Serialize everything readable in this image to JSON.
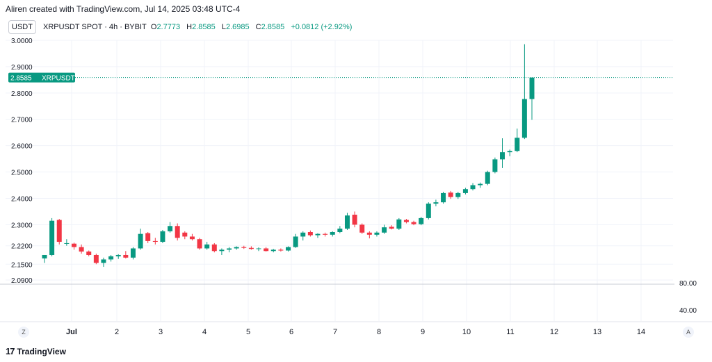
{
  "header": {
    "credit": "Aliren created with TradingView.com, Jul 14, 2025 03:48 UTC-4"
  },
  "toolbar": {
    "currency": "USDT",
    "auto_btn": "A",
    "zoom_btn": "Z"
  },
  "legend": {
    "symbol": "XRPUSDT SPOT · 4h · BYBIT",
    "open_label": "O",
    "open": "2.7773",
    "high_label": "H",
    "high": "2.8585",
    "low_label": "L",
    "low": "2.6985",
    "close_label": "C",
    "close": "2.8585",
    "change": "+0.0812 (+2.92%)"
  },
  "footer": {
    "brand": "TradingView",
    "logo_text": "17"
  },
  "colors": {
    "up": "#089981",
    "down": "#f23645",
    "grid": "#f0f3fa",
    "text": "#131722"
  },
  "chart_data": {
    "type": "candlestick",
    "price_axis_ticks": [
      "3.0000",
      "2.9000",
      "2.8000",
      "2.7000",
      "2.6000",
      "2.5000",
      "2.4000",
      "2.3000",
      "2.2200",
      "2.1500",
      "2.0900"
    ],
    "ylim": [
      2.09,
      3.0
    ],
    "last_price_label": {
      "value": "2.8585",
      "symbol": "XRPUSDT"
    },
    "indicator_axis_ticks": [
      "80.00",
      "40.00"
    ],
    "x_ticks": [
      "Jul",
      "2",
      "3",
      "4",
      "5",
      "6",
      "7",
      "8",
      "9",
      "10",
      "11",
      "12",
      "13",
      "14"
    ],
    "candles": [
      {
        "o": 2.172,
        "h": 2.185,
        "l": 2.155,
        "c": 2.185
      },
      {
        "o": 2.185,
        "h": 2.325,
        "l": 2.18,
        "c": 2.315
      },
      {
        "o": 2.318,
        "h": 2.322,
        "l": 2.225,
        "c": 2.235
      },
      {
        "o": 2.23,
        "h": 2.245,
        "l": 2.22,
        "c": 2.23
      },
      {
        "o": 2.228,
        "h": 2.232,
        "l": 2.205,
        "c": 2.215
      },
      {
        "o": 2.215,
        "h": 2.225,
        "l": 2.19,
        "c": 2.198
      },
      {
        "o": 2.198,
        "h": 2.202,
        "l": 2.18,
        "c": 2.185
      },
      {
        "o": 2.185,
        "h": 2.19,
        "l": 2.15,
        "c": 2.155
      },
      {
        "o": 2.155,
        "h": 2.175,
        "l": 2.14,
        "c": 2.168
      },
      {
        "o": 2.168,
        "h": 2.185,
        "l": 2.16,
        "c": 2.18
      },
      {
        "o": 2.18,
        "h": 2.188,
        "l": 2.17,
        "c": 2.185
      },
      {
        "o": 2.185,
        "h": 2.2,
        "l": 2.172,
        "c": 2.175
      },
      {
        "o": 2.175,
        "h": 2.215,
        "l": 2.168,
        "c": 2.21
      },
      {
        "o": 2.21,
        "h": 2.285,
        "l": 2.205,
        "c": 2.265
      },
      {
        "o": 2.268,
        "h": 2.272,
        "l": 2.23,
        "c": 2.238
      },
      {
        "o": 2.238,
        "h": 2.25,
        "l": 2.225,
        "c": 2.235
      },
      {
        "o": 2.235,
        "h": 2.28,
        "l": 2.23,
        "c": 2.275
      },
      {
        "o": 2.275,
        "h": 2.31,
        "l": 2.27,
        "c": 2.295
      },
      {
        "o": 2.295,
        "h": 2.305,
        "l": 2.24,
        "c": 2.25
      },
      {
        "o": 2.27,
        "h": 2.275,
        "l": 2.245,
        "c": 2.255
      },
      {
        "o": 2.255,
        "h": 2.265,
        "l": 2.24,
        "c": 2.245
      },
      {
        "o": 2.245,
        "h": 2.25,
        "l": 2.205,
        "c": 2.21
      },
      {
        "o": 2.21,
        "h": 2.235,
        "l": 2.205,
        "c": 2.225
      },
      {
        "o": 2.225,
        "h": 2.23,
        "l": 2.195,
        "c": 2.2
      },
      {
        "o": 2.2,
        "h": 2.21,
        "l": 2.185,
        "c": 2.205
      },
      {
        "o": 2.205,
        "h": 2.215,
        "l": 2.195,
        "c": 2.21
      },
      {
        "o": 2.21,
        "h": 2.218,
        "l": 2.205,
        "c": 2.215
      },
      {
        "o": 2.215,
        "h": 2.22,
        "l": 2.208,
        "c": 2.212
      },
      {
        "o": 2.212,
        "h": 2.218,
        "l": 2.205,
        "c": 2.208
      },
      {
        "o": 2.208,
        "h": 2.214,
        "l": 2.2,
        "c": 2.21
      },
      {
        "o": 2.21,
        "h": 2.215,
        "l": 2.198,
        "c": 2.2
      },
      {
        "o": 2.2,
        "h": 2.208,
        "l": 2.195,
        "c": 2.205
      },
      {
        "o": 2.205,
        "h": 2.21,
        "l": 2.198,
        "c": 2.202
      },
      {
        "o": 2.202,
        "h": 2.218,
        "l": 2.198,
        "c": 2.215
      },
      {
        "o": 2.215,
        "h": 2.265,
        "l": 2.212,
        "c": 2.255
      },
      {
        "o": 2.255,
        "h": 2.275,
        "l": 2.24,
        "c": 2.27
      },
      {
        "o": 2.272,
        "h": 2.278,
        "l": 2.255,
        "c": 2.26
      },
      {
        "o": 2.26,
        "h": 2.268,
        "l": 2.25,
        "c": 2.265
      },
      {
        "o": 2.265,
        "h": 2.27,
        "l": 2.255,
        "c": 2.262
      },
      {
        "o": 2.262,
        "h": 2.275,
        "l": 2.255,
        "c": 2.272
      },
      {
        "o": 2.272,
        "h": 2.295,
        "l": 2.268,
        "c": 2.285
      },
      {
        "o": 2.285,
        "h": 2.345,
        "l": 2.28,
        "c": 2.335
      },
      {
        "o": 2.338,
        "h": 2.35,
        "l": 2.29,
        "c": 2.3
      },
      {
        "o": 2.3,
        "h": 2.305,
        "l": 2.265,
        "c": 2.27
      },
      {
        "o": 2.27,
        "h": 2.275,
        "l": 2.248,
        "c": 2.262
      },
      {
        "o": 2.262,
        "h": 2.275,
        "l": 2.255,
        "c": 2.27
      },
      {
        "o": 2.27,
        "h": 2.3,
        "l": 2.265,
        "c": 2.29
      },
      {
        "o": 2.292,
        "h": 2.298,
        "l": 2.282,
        "c": 2.285
      },
      {
        "o": 2.285,
        "h": 2.325,
        "l": 2.28,
        "c": 2.32
      },
      {
        "o": 2.318,
        "h": 2.322,
        "l": 2.305,
        "c": 2.31
      },
      {
        "o": 2.31,
        "h": 2.315,
        "l": 2.298,
        "c": 2.302
      },
      {
        "o": 2.302,
        "h": 2.33,
        "l": 2.298,
        "c": 2.325
      },
      {
        "o": 2.325,
        "h": 2.385,
        "l": 2.32,
        "c": 2.38
      },
      {
        "o": 2.38,
        "h": 2.395,
        "l": 2.37,
        "c": 2.385
      },
      {
        "o": 2.385,
        "h": 2.425,
        "l": 2.38,
        "c": 2.42
      },
      {
        "o": 2.422,
        "h": 2.428,
        "l": 2.398,
        "c": 2.405
      },
      {
        "o": 2.405,
        "h": 2.425,
        "l": 2.398,
        "c": 2.42
      },
      {
        "o": 2.42,
        "h": 2.44,
        "l": 2.415,
        "c": 2.435
      },
      {
        "o": 2.435,
        "h": 2.458,
        "l": 2.43,
        "c": 2.45
      },
      {
        "o": 2.45,
        "h": 2.46,
        "l": 2.44,
        "c": 2.455
      },
      {
        "o": 2.455,
        "h": 2.505,
        "l": 2.45,
        "c": 2.5
      },
      {
        "o": 2.5,
        "h": 2.555,
        "l": 2.495,
        "c": 2.548
      },
      {
        "o": 2.548,
        "h": 2.628,
        "l": 2.515,
        "c": 2.575
      },
      {
        "o": 2.575,
        "h": 2.585,
        "l": 2.56,
        "c": 2.58
      },
      {
        "o": 2.58,
        "h": 2.665,
        "l": 2.575,
        "c": 2.63
      },
      {
        "o": 2.63,
        "h": 2.985,
        "l": 2.625,
        "c": 2.777
      },
      {
        "o": 2.777,
        "h": 2.859,
        "l": 2.698,
        "c": 2.8585
      }
    ]
  }
}
